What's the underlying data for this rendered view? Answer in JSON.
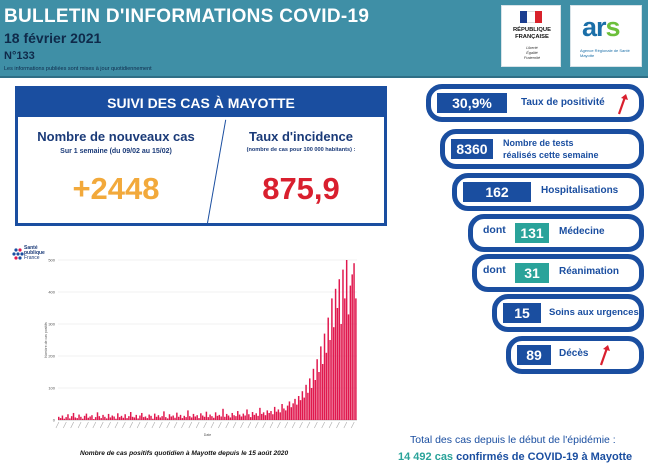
{
  "header": {
    "title": "BULLETIN D'INFORMATIONS COVID-19",
    "date": "18 février 2021",
    "issue": "N°133",
    "note": "Les informations publiées sont mises à jour quotidiennement",
    "rf_logo": {
      "line1": "RÉPUBLIQUE",
      "line2": "FRANÇAISE",
      "motto1": "Liberté",
      "motto2": "Égalité",
      "motto3": "Fraternité"
    },
    "ars_logo": {
      "word_a": "ar",
      "word_s": "s",
      "sub": "Agence Régionale de Santé Mayotte"
    }
  },
  "main_panel": {
    "heading": "SUIVI DES CAS À MAYOTTE",
    "new_cases": {
      "title": "Nombre de nouveaux cas",
      "subtitle": "Sur 1 semaine (du 09/02 au 15/02)",
      "value": "+2448"
    },
    "incidence": {
      "title": "Taux d'incidence",
      "subtitle": "(nombre de cas pour 100 000 habitants) :",
      "value": "875,9"
    }
  },
  "indicators": {
    "positivity": {
      "value": "30,9%",
      "label": "Taux de positivité",
      "trend": "up"
    },
    "tests": {
      "value": "8360",
      "label_line1": "Nombre de tests",
      "label_line2": "réalisés cette semaine"
    },
    "hospitalisations": {
      "value": "162",
      "label": "Hospitalisations"
    },
    "medecine": {
      "prefix": "dont",
      "value": "131",
      "label": "Médecine"
    },
    "reanimation": {
      "prefix": "dont",
      "value": "31",
      "label": "Réanimation"
    },
    "urgences": {
      "value": "15",
      "label": "Soins aux urgences"
    },
    "deces": {
      "value": "89",
      "label": "Décès",
      "trend": "up"
    }
  },
  "chart": {
    "source_logo_line1": "Santé",
    "source_logo_line2": "publique",
    "source_logo_line3": "France",
    "caption": "Nombre de cas positifs quotidien à Mayotte depuis le 15 août 2020"
  },
  "chart_data": {
    "type": "bar",
    "ylim": [
      0,
      500
    ],
    "yticks": [
      0,
      100,
      200,
      300,
      400,
      500
    ],
    "xlabel": "Date",
    "ylabel": "Nombre de cas positifs",
    "series_color": "#e0184e",
    "values": [
      10,
      6,
      14,
      4,
      9,
      18,
      5,
      12,
      22,
      8,
      6,
      17,
      10,
      4,
      13,
      20,
      7,
      11,
      15,
      3,
      9,
      24,
      12,
      6,
      16,
      10,
      5,
      19,
      8,
      14,
      11,
      4,
      21,
      9,
      13,
      7,
      18,
      6,
      12,
      25,
      10,
      8,
      16,
      5,
      14,
      22,
      9,
      11,
      6,
      17,
      13,
      4,
      20,
      10,
      15,
      8,
      12,
      27,
      9,
      5,
      18,
      11,
      14,
      7,
      23,
      10,
      16,
      6,
      13,
      9,
      30,
      12,
      8,
      19,
      11,
      15,
      6,
      21,
      14,
      10,
      26,
      9,
      17,
      12,
      7,
      24,
      13,
      16,
      11,
      35,
      10,
      19,
      14,
      8,
      22,
      15,
      12,
      28,
      17,
      11,
      20,
      14,
      33,
      18,
      9,
      25,
      16,
      21,
      13,
      38,
      19,
      24,
      15,
      30,
      22,
      28,
      18,
      41,
      26,
      33,
      24,
      50,
      36,
      30,
      45,
      58,
      40,
      52,
      66,
      48,
      75,
      62,
      90,
      70,
      110,
      85,
      130,
      100,
      160,
      125,
      190,
      150,
      230,
      175,
      270,
      210,
      320,
      250,
      380,
      290,
      410,
      350,
      440,
      300,
      470,
      380,
      500,
      330,
      420,
      455,
      490,
      380
    ]
  },
  "totals": {
    "line1": "Total des cas depuis le début de l'épidémie :",
    "count": "14 492 cas",
    "rest": "confirmés de COVID-19 à Mayotte"
  }
}
